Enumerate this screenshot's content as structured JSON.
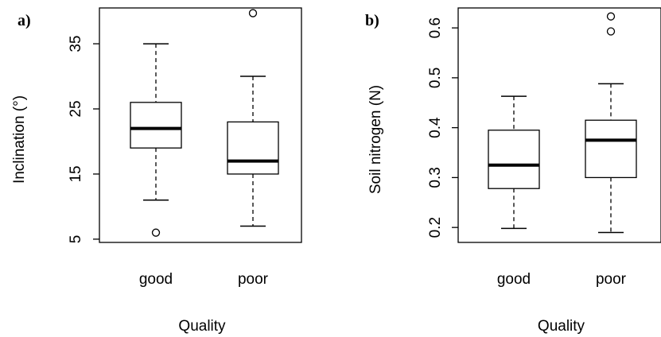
{
  "chart_data": [
    {
      "type": "boxplot",
      "panel_label": "a)",
      "xlabel": "Quality",
      "ylabel": "Inclination (°)",
      "categories": [
        "good",
        "poor"
      ],
      "ylim": [
        4.5,
        40.5
      ],
      "yticks": [
        5,
        15,
        25,
        35
      ],
      "ytick_labels": [
        "5",
        "15",
        "25",
        "35"
      ],
      "boxes": [
        {
          "category": "good",
          "whisker_low": 11,
          "q1": 19,
          "median": 22,
          "q3": 26,
          "whisker_high": 35,
          "outliers": [
            6
          ]
        },
        {
          "category": "poor",
          "whisker_low": 7,
          "q1": 15,
          "median": 17,
          "q3": 23,
          "whisker_high": 30,
          "outliers": [
            39.7
          ]
        }
      ]
    },
    {
      "type": "boxplot",
      "panel_label": "b)",
      "xlabel": "Quality",
      "ylabel": "Soil nitrogen (N)",
      "categories": [
        "good",
        "poor"
      ],
      "ylim": [
        0.17,
        0.64
      ],
      "yticks": [
        0.2,
        0.3,
        0.4,
        0.5,
        0.6
      ],
      "ytick_labels": [
        "0.2",
        "0.3",
        "0.4",
        "0.5",
        "0.6"
      ],
      "boxes": [
        {
          "category": "good",
          "whisker_low": 0.198,
          "q1": 0.278,
          "median": 0.325,
          "q3": 0.395,
          "whisker_high": 0.463,
          "outliers": []
        },
        {
          "category": "poor",
          "whisker_low": 0.19,
          "q1": 0.3,
          "median": 0.375,
          "q3": 0.415,
          "whisker_high": 0.488,
          "outliers": [
            0.593,
            0.623
          ]
        }
      ]
    }
  ]
}
